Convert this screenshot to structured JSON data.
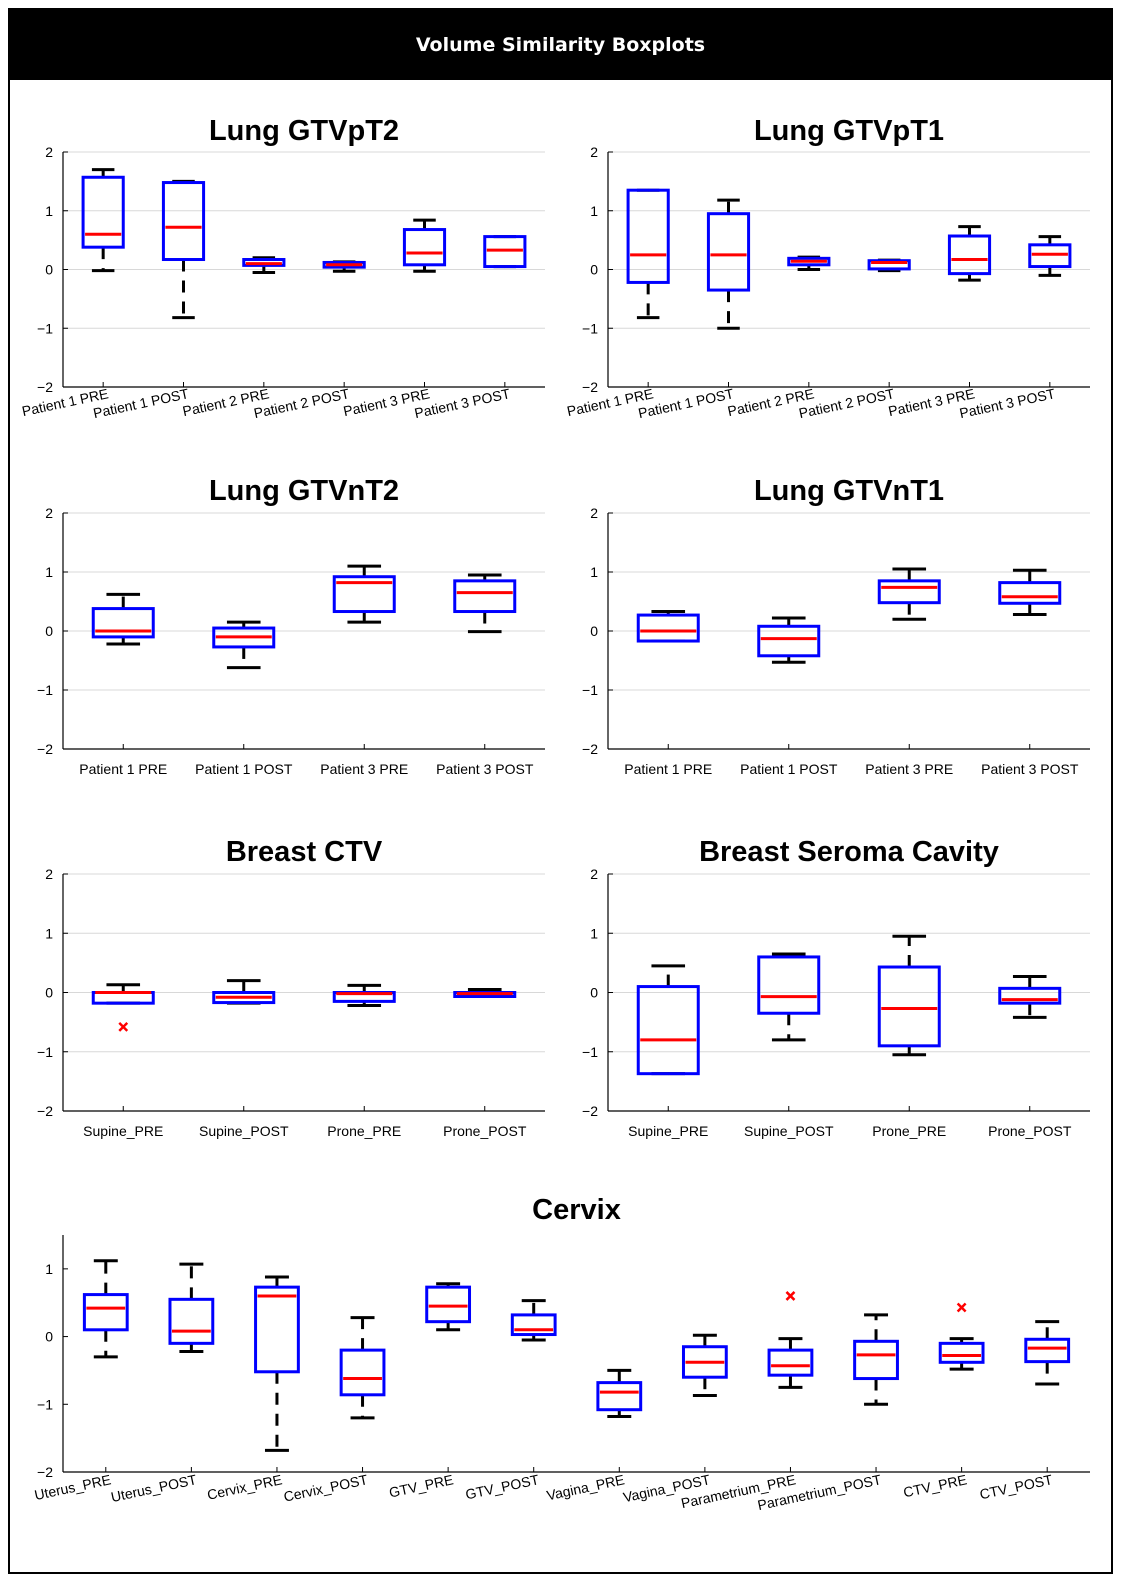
{
  "header": {
    "title": "Volume Similarity Boxplots"
  },
  "colors": {
    "box": "#0000ff",
    "median": "#ff0000",
    "whisker": "#000000",
    "outlier": "#ff0000",
    "grid": "#d8d8d8"
  },
  "chart_data": [
    {
      "type": "box",
      "title": "Lung GTVpT2",
      "ylim": [
        -2,
        2
      ],
      "yticks": [
        "−2",
        "−1",
        "0",
        "1",
        "2"
      ],
      "grid": true,
      "categories": [
        "Patient 1 PRE",
        "Patient 1 POST",
        "Patient 2 PRE",
        "Patient 2 POST",
        "Patient 3 PRE",
        "Patient 3 POST"
      ],
      "boxes": [
        {
          "min": -0.02,
          "q1": 0.38,
          "median": 0.6,
          "q3": 1.57,
          "max": 1.7,
          "outliers": []
        },
        {
          "min": -0.82,
          "q1": 0.17,
          "median": 0.72,
          "q3": 1.48,
          "max": 1.5,
          "outliers": []
        },
        {
          "min": -0.05,
          "q1": 0.07,
          "median": 0.1,
          "q3": 0.17,
          "max": 0.2,
          "outliers": []
        },
        {
          "min": -0.03,
          "q1": 0.04,
          "median": 0.08,
          "q3": 0.12,
          "max": 0.13,
          "outliers": []
        },
        {
          "min": -0.03,
          "q1": 0.08,
          "median": 0.28,
          "q3": 0.68,
          "max": 0.84,
          "outliers": []
        },
        {
          "min": 0.05,
          "q1": 0.05,
          "median": 0.33,
          "q3": 0.56,
          "max": 0.56,
          "outliers": []
        }
      ]
    },
    {
      "type": "box",
      "title": "Lung GTVpT1",
      "ylim": [
        -2,
        2
      ],
      "yticks": [
        "−2",
        "−1",
        "0",
        "1",
        "2"
      ],
      "grid": true,
      "categories": [
        "Patient 1 PRE",
        "Patient 1 POST",
        "Patient 2 PRE",
        "Patient 2 POST",
        "Patient 3 PRE",
        "Patient 3 POST"
      ],
      "boxes": [
        {
          "min": -0.82,
          "q1": -0.22,
          "median": 0.25,
          "q3": 1.35,
          "max": 1.35,
          "outliers": []
        },
        {
          "min": -1.0,
          "q1": -0.35,
          "median": 0.25,
          "q3": 0.95,
          "max": 1.18,
          "outliers": []
        },
        {
          "min": 0.0,
          "q1": 0.08,
          "median": 0.14,
          "q3": 0.19,
          "max": 0.21,
          "outliers": []
        },
        {
          "min": -0.02,
          "q1": 0.01,
          "median": 0.12,
          "q3": 0.15,
          "max": 0.16,
          "outliers": []
        },
        {
          "min": -0.18,
          "q1": -0.07,
          "median": 0.17,
          "q3": 0.57,
          "max": 0.73,
          "outliers": []
        },
        {
          "min": -0.1,
          "q1": 0.05,
          "median": 0.26,
          "q3": 0.42,
          "max": 0.56,
          "outliers": []
        }
      ]
    },
    {
      "type": "box",
      "title": "Lung GTVnT2",
      "ylim": [
        -2,
        2
      ],
      "yticks": [
        "−2",
        "−1",
        "0",
        "1",
        "2"
      ],
      "grid": true,
      "categories": [
        "Patient 1 PRE",
        "Patient 1 POST",
        "Patient 3 PRE",
        "Patient 3 POST"
      ],
      "boxes": [
        {
          "min": -0.22,
          "q1": -0.1,
          "median": 0.0,
          "q3": 0.38,
          "max": 0.62,
          "outliers": []
        },
        {
          "min": -0.62,
          "q1": -0.27,
          "median": -0.1,
          "q3": 0.05,
          "max": 0.15,
          "outliers": []
        },
        {
          "min": 0.15,
          "q1": 0.33,
          "median": 0.82,
          "q3": 0.92,
          "max": 1.1,
          "outliers": []
        },
        {
          "min": -0.01,
          "q1": 0.33,
          "median": 0.65,
          "q3": 0.85,
          "max": 0.95,
          "outliers": []
        }
      ]
    },
    {
      "type": "box",
      "title": "Lung GTVnT1",
      "ylim": [
        -2,
        2
      ],
      "yticks": [
        "−2",
        "−1",
        "0",
        "1",
        "2"
      ],
      "grid": true,
      "categories": [
        "Patient 1 PRE",
        "Patient 1 POST",
        "Patient 3 PRE",
        "Patient 3 POST"
      ],
      "boxes": [
        {
          "min": -0.17,
          "q1": -0.17,
          "median": 0.0,
          "q3": 0.27,
          "max": 0.33,
          "outliers": []
        },
        {
          "min": -0.53,
          "q1": -0.42,
          "median": -0.13,
          "q3": 0.08,
          "max": 0.22,
          "outliers": []
        },
        {
          "min": 0.2,
          "q1": 0.48,
          "median": 0.74,
          "q3": 0.85,
          "max": 1.05,
          "outliers": []
        },
        {
          "min": 0.28,
          "q1": 0.47,
          "median": 0.58,
          "q3": 0.82,
          "max": 1.03,
          "outliers": []
        }
      ]
    },
    {
      "type": "box",
      "title": "Breast CTV",
      "ylim": [
        -2,
        2
      ],
      "yticks": [
        "−2",
        "−1",
        "0",
        "1",
        "2"
      ],
      "grid": true,
      "categories": [
        "Supine_PRE",
        "Supine_POST",
        "Prone_PRE",
        "Prone_POST"
      ],
      "boxes": [
        {
          "min": -0.18,
          "q1": -0.18,
          "median": 0.0,
          "q3": 0.0,
          "max": 0.13,
          "outliers": [
            -0.58
          ]
        },
        {
          "min": -0.18,
          "q1": -0.17,
          "median": -0.08,
          "q3": 0.0,
          "max": 0.2,
          "outliers": []
        },
        {
          "min": -0.22,
          "q1": -0.15,
          "median": -0.02,
          "q3": 0.0,
          "max": 0.12,
          "outliers": []
        },
        {
          "min": -0.05,
          "q1": -0.04,
          "median": -0.02,
          "q3": 0.0,
          "max": 0.05,
          "outliers": []
        }
      ]
    },
    {
      "type": "box",
      "title": "Breast Seroma Cavity",
      "ylim": [
        -2,
        2
      ],
      "yticks": [
        "−2",
        "−1",
        "0",
        "1",
        "2"
      ],
      "grid": true,
      "categories": [
        "Supine_PRE",
        "Supine_POST",
        "Prone_PRE",
        "Prone_POST"
      ],
      "boxes": [
        {
          "min": -1.37,
          "q1": -1.37,
          "median": -0.8,
          "q3": 0.1,
          "max": 0.45,
          "outliers": []
        },
        {
          "min": -0.8,
          "q1": -0.35,
          "median": -0.07,
          "q3": 0.6,
          "max": 0.65,
          "outliers": []
        },
        {
          "min": -1.05,
          "q1": -0.9,
          "median": -0.27,
          "q3": 0.43,
          "max": 0.95,
          "outliers": []
        },
        {
          "min": -0.42,
          "q1": -0.18,
          "median": -0.12,
          "q3": 0.07,
          "max": 0.27,
          "outliers": []
        }
      ]
    },
    {
      "type": "box",
      "title": "Cervix",
      "ylim": [
        -2,
        1.5
      ],
      "yticks": [
        "−2",
        "−1",
        "0",
        "1"
      ],
      "grid": false,
      "categories": [
        "Uterus_PRE",
        "Uterus_POST",
        "Cervix_PRE",
        "Cervix_POST",
        "GTV_PRE",
        "GTV_POST",
        "Vagina_PRE",
        "Vagina_POST",
        "Parametrium_PRE",
        "Parametrium_POST",
        "CTV_PRE",
        "CTV_POST"
      ],
      "boxes": [
        {
          "min": -0.3,
          "q1": 0.1,
          "median": 0.42,
          "q3": 0.62,
          "max": 1.12,
          "outliers": []
        },
        {
          "min": -0.22,
          "q1": -0.1,
          "median": 0.08,
          "q3": 0.55,
          "max": 1.07,
          "outliers": []
        },
        {
          "min": -1.68,
          "q1": -0.52,
          "median": 0.6,
          "q3": 0.73,
          "max": 0.88,
          "outliers": []
        },
        {
          "min": -1.2,
          "q1": -0.86,
          "median": -0.62,
          "q3": -0.2,
          "max": 0.28,
          "outliers": []
        },
        {
          "min": 0.1,
          "q1": 0.22,
          "median": 0.45,
          "q3": 0.73,
          "max": 0.78,
          "outliers": []
        },
        {
          "min": -0.05,
          "q1": 0.03,
          "median": 0.1,
          "q3": 0.32,
          "max": 0.53,
          "outliers": []
        },
        {
          "min": -1.18,
          "q1": -1.08,
          "median": -0.82,
          "q3": -0.68,
          "max": -0.5,
          "outliers": []
        },
        {
          "min": -0.87,
          "q1": -0.6,
          "median": -0.38,
          "q3": -0.15,
          "max": 0.02,
          "outliers": []
        },
        {
          "min": -0.75,
          "q1": -0.57,
          "median": -0.43,
          "q3": -0.2,
          "max": -0.03,
          "outliers": [
            0.6
          ]
        },
        {
          "min": -1.0,
          "q1": -0.62,
          "median": -0.27,
          "q3": -0.07,
          "max": 0.32,
          "outliers": []
        },
        {
          "min": -0.48,
          "q1": -0.38,
          "median": -0.28,
          "q3": -0.1,
          "max": -0.03,
          "outliers": [
            0.43
          ]
        },
        {
          "min": -0.7,
          "q1": -0.37,
          "median": -0.17,
          "q3": -0.04,
          "max": 0.22,
          "outliers": []
        }
      ]
    }
  ]
}
